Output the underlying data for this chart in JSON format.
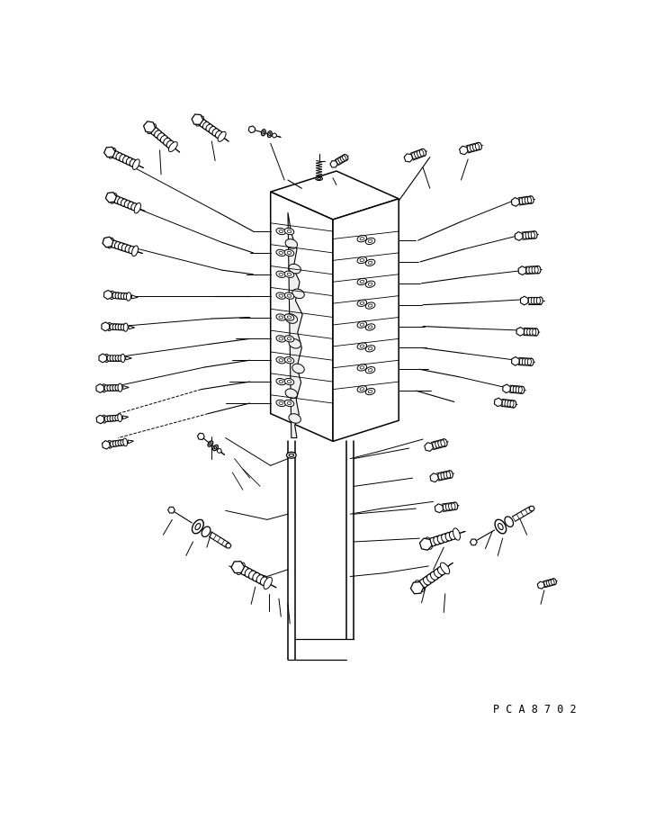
{
  "background_color": "#ffffff",
  "line_color": "#000000",
  "watermark_text": "P C A 8 7 0 2",
  "figsize": [
    7.28,
    9.1
  ],
  "dpi": 100,
  "lw_main": 0.9,
  "lw_thin": 0.6,
  "lw_body": 1.1
}
